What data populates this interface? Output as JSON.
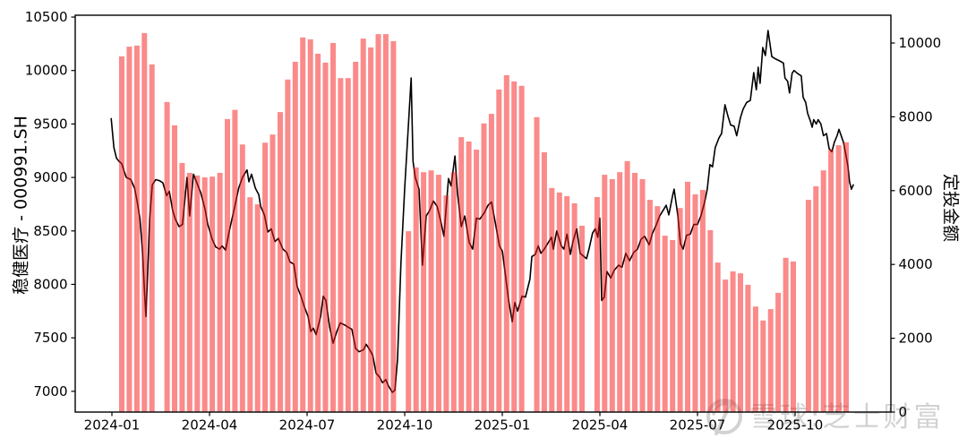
{
  "watermark": {
    "text": "雪球:芝士财富",
    "logo": "xueqiu-snowball-logo",
    "color": "#d2d2d2"
  },
  "chart_data": {
    "type": "bar+line",
    "title": "",
    "legend_position": "none",
    "grid": false,
    "background": "#ffffff",
    "left_axis": {
      "title": "稳健医疗 - 000991.SH",
      "tick_labels": [
        "7000",
        "7500",
        "8000",
        "8500",
        "9000",
        "9500",
        "10000",
        "10500"
      ],
      "tick_values": [
        7000,
        7500,
        8000,
        8500,
        9000,
        9500,
        10000,
        10500
      ],
      "range": [
        6806,
        10517
      ]
    },
    "right_axis": {
      "title": "定投金额",
      "tick_labels": [
        "0",
        "2000",
        "4000",
        "6000",
        "8000",
        "10000"
      ],
      "tick_values": [
        0,
        2000,
        4000,
        6000,
        8000,
        10000
      ],
      "range": [
        0,
        10753
      ]
    },
    "x_axis": {
      "tick_labels": [
        "2024-01",
        "2024-04",
        "2024-07",
        "2024-10",
        "2025-01",
        "2025-04",
        "2025-07",
        "2025-10"
      ],
      "unit": "weekly"
    },
    "bar_series": {
      "name": "定投金额",
      "axis": "right",
      "color": "rgba(247,21,21,0.5)",
      "values": [
        9640,
        9900,
        9930,
        10270,
        9420,
        null,
        8400,
        7770,
        6750,
        6480,
        6410,
        6360,
        6380,
        6480,
        7940,
        8190,
        7250,
        5820,
        5630,
        7300,
        7520,
        8130,
        9010,
        9490,
        10150,
        10100,
        9710,
        9470,
        10000,
        9050,
        9050,
        9490,
        10120,
        9880,
        10240,
        10240,
        10050,
        null,
        4900,
        6630,
        6500,
        6550,
        6430,
        5870,
        6500,
        7450,
        7330,
        7110,
        7820,
        8080,
        8740,
        9130,
        8960,
        8840,
        null,
        7990,
        7040,
        6070,
        5950,
        5850,
        5655,
        5050,
        null,
        5825,
        6430,
        6310,
        6500,
        6800,
        6480,
        6310,
        5750,
        5580,
        4780,
        4660,
        5530,
        6240,
        5900,
        6020,
        4930,
        4050,
        3590,
        3810,
        3760,
        3450,
        2860,
        2480,
        2790,
        3230,
        4180,
        4080,
        null,
        5750,
        6120,
        6550,
        7110,
        7230,
        7310
      ]
    },
    "line_series": {
      "name": "稳健医疗 - 000991.SH",
      "axis": "left",
      "color": "#000000",
      "points": [
        [
          -1.4,
          9550
        ],
        [
          -1.05,
          9280
        ],
        [
          -0.7,
          9180
        ],
        [
          -0.35,
          9150
        ],
        [
          0,
          9130
        ],
        [
          0.3,
          9060
        ],
        [
          0.6,
          9000
        ],
        [
          1.2,
          8980
        ],
        [
          1.7,
          8900
        ],
        [
          2.0,
          8790
        ],
        [
          2.4,
          8620
        ],
        [
          2.75,
          8300
        ],
        [
          3.0,
          7950
        ],
        [
          3.2,
          7700
        ],
        [
          3.45,
          8150
        ],
        [
          3.7,
          8620
        ],
        [
          4.05,
          8930
        ],
        [
          4.5,
          8980
        ],
        [
          5.0,
          8970
        ],
        [
          5.45,
          8950
        ],
        [
          5.95,
          8830
        ],
        [
          6.3,
          8870
        ],
        [
          6.75,
          8690
        ],
        [
          7.1,
          8610
        ],
        [
          7.6,
          8540
        ],
        [
          8.05,
          8560
        ],
        [
          8.65,
          9000
        ],
        [
          9.0,
          8640
        ],
        [
          9.5,
          9030
        ],
        [
          9.95,
          8950
        ],
        [
          10.45,
          8860
        ],
        [
          11.05,
          8700
        ],
        [
          11.4,
          8560
        ],
        [
          12.0,
          8420
        ],
        [
          12.45,
          8350
        ],
        [
          12.95,
          8330
        ],
        [
          13.3,
          8360
        ],
        [
          13.75,
          8320
        ],
        [
          14.25,
          8500
        ],
        [
          14.95,
          8720
        ],
        [
          15.5,
          8900
        ],
        [
          16.0,
          9000
        ],
        [
          16.6,
          9070
        ],
        [
          16.85,
          8960
        ],
        [
          17.2,
          9030
        ],
        [
          17.7,
          8900
        ],
        [
          18.15,
          8840
        ],
        [
          18.4,
          8730
        ],
        [
          18.9,
          8650
        ],
        [
          19.35,
          8490
        ],
        [
          19.8,
          8520
        ],
        [
          20.3,
          8400
        ],
        [
          20.75,
          8430
        ],
        [
          21.35,
          8330
        ],
        [
          21.85,
          8300
        ],
        [
          22.3,
          8210
        ],
        [
          22.8,
          8190
        ],
        [
          23.25,
          7980
        ],
        [
          23.75,
          7890
        ],
        [
          24.2,
          7790
        ],
        [
          24.7,
          7700
        ],
        [
          25.05,
          7560
        ],
        [
          25.4,
          7590
        ],
        [
          25.75,
          7530
        ],
        [
          26.35,
          7700
        ],
        [
          26.7,
          7890
        ],
        [
          27.05,
          7850
        ],
        [
          27.55,
          7600
        ],
        [
          28.0,
          7450
        ],
        [
          28.5,
          7560
        ],
        [
          28.95,
          7640
        ],
        [
          29.55,
          7620
        ],
        [
          30.0,
          7600
        ],
        [
          30.5,
          7580
        ],
        [
          31.0,
          7400
        ],
        [
          31.45,
          7370
        ],
        [
          32.05,
          7390
        ],
        [
          32.4,
          7440
        ],
        [
          32.85,
          7390
        ],
        [
          33.25,
          7340
        ],
        [
          33.7,
          7170
        ],
        [
          34.2,
          7130
        ],
        [
          34.55,
          7080
        ],
        [
          35.0,
          7110
        ],
        [
          35.35,
          7050
        ],
        [
          35.85,
          6990
        ],
        [
          36.2,
          7010
        ],
        [
          36.55,
          7300
        ],
        [
          37.0,
          8200
        ],
        [
          37.5,
          8900
        ],
        [
          38.0,
          9500
        ],
        [
          38.35,
          9930
        ],
        [
          38.6,
          9150
        ],
        [
          38.9,
          9000
        ],
        [
          39.4,
          8890
        ],
        [
          39.85,
          8180
        ],
        [
          40.35,
          8640
        ],
        [
          40.8,
          8690
        ],
        [
          41.3,
          8780
        ],
        [
          41.8,
          8730
        ],
        [
          42.25,
          8600
        ],
        [
          42.7,
          8450
        ],
        [
          43.3,
          8990
        ],
        [
          43.65,
          8920
        ],
        [
          44.15,
          9200
        ],
        [
          44.5,
          8850
        ],
        [
          45.0,
          8540
        ],
        [
          45.45,
          8640
        ],
        [
          46.05,
          8390
        ],
        [
          46.5,
          8330
        ],
        [
          47.0,
          8620
        ],
        [
          47.45,
          8610
        ],
        [
          48.05,
          8670
        ],
        [
          48.55,
          8740
        ],
        [
          49.0,
          8770
        ],
        [
          49.5,
          8580
        ],
        [
          50.05,
          8360
        ],
        [
          50.45,
          8310
        ],
        [
          50.9,
          8060
        ],
        [
          51.25,
          7860
        ],
        [
          51.75,
          7650
        ],
        [
          52.1,
          7830
        ],
        [
          52.45,
          7750
        ],
        [
          53.05,
          7890
        ],
        [
          53.5,
          7880
        ],
        [
          54.1,
          8050
        ],
        [
          54.35,
          8260
        ],
        [
          54.8,
          8280
        ],
        [
          55.2,
          8360
        ],
        [
          55.55,
          8290
        ],
        [
          56.0,
          8330
        ],
        [
          56.6,
          8400
        ],
        [
          56.95,
          8440
        ],
        [
          57.2,
          8330
        ],
        [
          57.65,
          8500
        ],
        [
          58.25,
          8360
        ],
        [
          58.6,
          8330
        ],
        [
          59.0,
          8470
        ],
        [
          59.45,
          8280
        ],
        [
          59.8,
          8400
        ],
        [
          60.3,
          8520
        ],
        [
          60.75,
          8290
        ],
        [
          61.6,
          8240
        ],
        [
          61.95,
          8340
        ],
        [
          62.4,
          8480
        ],
        [
          62.75,
          8520
        ],
        [
          63.1,
          8440
        ],
        [
          63.35,
          8620
        ],
        [
          63.6,
          7850
        ],
        [
          63.95,
          7880
        ],
        [
          64.3,
          8120
        ],
        [
          64.8,
          8060
        ],
        [
          65.25,
          8130
        ],
        [
          65.85,
          8180
        ],
        [
          66.3,
          8160
        ],
        [
          66.8,
          8290
        ],
        [
          67.3,
          8220
        ],
        [
          67.85,
          8300
        ],
        [
          68.35,
          8330
        ],
        [
          68.8,
          8420
        ],
        [
          69.3,
          8450
        ],
        [
          69.9,
          8370
        ],
        [
          70.35,
          8480
        ],
        [
          70.85,
          8560
        ],
        [
          71.3,
          8640
        ],
        [
          71.9,
          8710
        ],
        [
          72.15,
          8740
        ],
        [
          72.5,
          8650
        ],
        [
          73.0,
          8830
        ],
        [
          73.2,
          8890
        ],
        [
          73.7,
          8640
        ],
        [
          74.05,
          8380
        ],
        [
          74.4,
          8330
        ],
        [
          74.85,
          8460
        ],
        [
          75.35,
          8470
        ],
        [
          75.8,
          8560
        ],
        [
          76.3,
          8560
        ],
        [
          76.75,
          8640
        ],
        [
          77.25,
          8770
        ],
        [
          77.6,
          8890
        ],
        [
          77.95,
          9120
        ],
        [
          78.3,
          9100
        ],
        [
          78.65,
          9280
        ],
        [
          79.15,
          9370
        ],
        [
          79.5,
          9410
        ],
        [
          79.95,
          9680
        ],
        [
          80.35,
          9570
        ],
        [
          80.7,
          9490
        ],
        [
          81.15,
          9480
        ],
        [
          81.5,
          9390
        ],
        [
          82.0,
          9560
        ],
        [
          82.35,
          9640
        ],
        [
          82.8,
          9700
        ],
        [
          83.3,
          9720
        ],
        [
          83.75,
          9980
        ],
        [
          84.1,
          9820
        ],
        [
          84.35,
          10030
        ],
        [
          84.6,
          9880
        ],
        [
          84.95,
          10215
        ],
        [
          85.3,
          10140
        ],
        [
          85.65,
          10375
        ],
        [
          86.15,
          10130
        ],
        [
          86.6,
          10110
        ],
        [
          87.2,
          10090
        ],
        [
          87.7,
          10070
        ],
        [
          87.9,
          9930
        ],
        [
          88.25,
          9900
        ],
        [
          88.5,
          9790
        ],
        [
          88.85,
          9975
        ],
        [
          89.1,
          10000
        ],
        [
          89.6,
          9970
        ],
        [
          90.05,
          9950
        ],
        [
          90.3,
          9750
        ],
        [
          90.65,
          9700
        ],
        [
          90.9,
          9600
        ],
        [
          91.25,
          9530
        ],
        [
          91.5,
          9470
        ],
        [
          91.7,
          9540
        ],
        [
          92.05,
          9500
        ],
        [
          92.3,
          9540
        ],
        [
          92.65,
          9500
        ],
        [
          93.0,
          9390
        ],
        [
          93.4,
          9410
        ],
        [
          93.75,
          9270
        ],
        [
          94.1,
          9240
        ],
        [
          94.45,
          9330
        ],
        [
          94.8,
          9390
        ],
        [
          95.05,
          9450
        ],
        [
          95.4,
          9380
        ],
        [
          95.65,
          9330
        ],
        [
          96.0,
          9200
        ],
        [
          96.25,
          9100
        ],
        [
          96.45,
          8960
        ],
        [
          96.7,
          8890
        ],
        [
          96.95,
          8930
        ]
      ]
    }
  }
}
